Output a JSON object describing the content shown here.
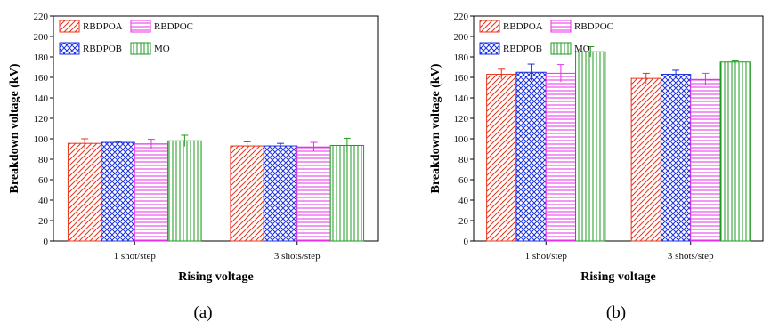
{
  "chart_data": [
    {
      "type": "bar",
      "ylabel": "Breakdown voltage (kV)",
      "xlabel": "Rising voltage",
      "ylim": [
        0,
        220
      ],
      "yticks": [
        0,
        20,
        40,
        60,
        80,
        100,
        120,
        140,
        160,
        180,
        200,
        220
      ],
      "categories": [
        "1 shot/step",
        "3 shots/step"
      ],
      "series": [
        {
          "name": "RBDPOA",
          "values": [
            95.5,
            93
          ],
          "errors": [
            4.5,
            4
          ],
          "color": "#e8331c",
          "pattern": "diag"
        },
        {
          "name": "RBDPOB",
          "values": [
            96.5,
            93
          ],
          "errors": [
            1,
            2.5
          ],
          "color": "#1a2fe0",
          "pattern": "cross"
        },
        {
          "name": "RBDPOC",
          "values": [
            95,
            92
          ],
          "errors": [
            4.5,
            4.5
          ],
          "color": "#e632e6",
          "pattern": "horiz"
        },
        {
          "name": "MO",
          "values": [
            98,
            93.5
          ],
          "errors": [
            5.5,
            7
          ],
          "color": "#1f9a1f",
          "pattern": "vert"
        }
      ],
      "legend": [
        "RBDPOA",
        "RBDPOC",
        "RBDPOB",
        "MO"
      ],
      "legend_position": "top-left",
      "caption": "(a)"
    },
    {
      "type": "bar",
      "ylabel": "Breakdown voltage (kV)",
      "xlabel": "Rising voltage",
      "ylim": [
        0,
        220
      ],
      "yticks": [
        0,
        20,
        40,
        60,
        80,
        100,
        120,
        140,
        160,
        180,
        200,
        220
      ],
      "categories": [
        "1 shot/step",
        "3 shots/step"
      ],
      "series": [
        {
          "name": "RBDPOA",
          "values": [
            163,
            159
          ],
          "errors": [
            5,
            5
          ],
          "color": "#e8331c",
          "pattern": "diag"
        },
        {
          "name": "RBDPOB",
          "values": [
            165,
            163
          ],
          "errors": [
            8,
            4
          ],
          "color": "#1a2fe0",
          "pattern": "cross"
        },
        {
          "name": "RBDPOC",
          "values": [
            164,
            158
          ],
          "errors": [
            8.5,
            6
          ],
          "color": "#e632e6",
          "pattern": "horiz"
        },
        {
          "name": "MO",
          "values": [
            185,
            175
          ],
          "errors": [
            5,
            1
          ],
          "color": "#1f9a1f",
          "pattern": "vert"
        }
      ],
      "legend": [
        "RBDPOA",
        "RBDPOC",
        "RBDPOB",
        "MO"
      ],
      "legend_position": "top-left",
      "caption": "(b)"
    }
  ]
}
